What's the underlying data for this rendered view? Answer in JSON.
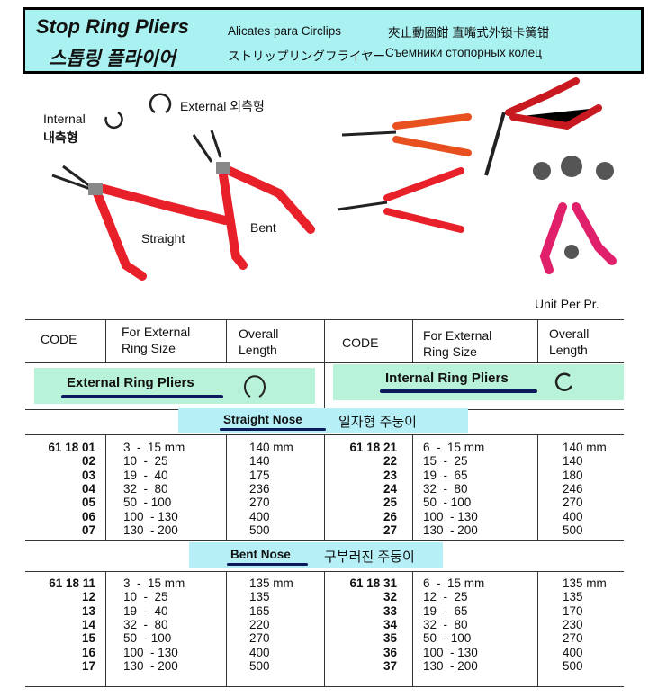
{
  "header": {
    "title_en": "Stop Ring Pliers",
    "title_ko": "스톱링 플라이어",
    "title_es": "Alicates para Circlips",
    "title_zh": "夾止動圈鉗  直嘴式外锁卡簧钳",
    "title_ja": "ストリップリングフライヤー",
    "title_ru": "Съемники стопорных колец"
  },
  "images": {
    "internal_en": "Internal",
    "internal_ko": "내측형",
    "external": "External 외측형",
    "straight": "Straight",
    "bent": "Bent",
    "unit": "Unit Per Pr."
  },
  "table": {
    "headers": [
      "CODE",
      "For External\nRing Size",
      "Overall\nLength"
    ],
    "external_title": "External Ring Pliers",
    "internal_title": "Internal Ring Pliers",
    "straight_title": "Straight Nose",
    "straight_ko": "일자형 주둥이",
    "bent_title": "Bent Nose",
    "bent_ko": "구부러진 주둥이",
    "straight_ext": [
      [
        "61 18 01",
        "3  -  15 mm",
        "140 mm"
      ],
      [
        "02",
        "10  -  25",
        "140"
      ],
      [
        "03",
        "19  -  40",
        "175"
      ],
      [
        "04",
        "32  -  80",
        "236"
      ],
      [
        "05",
        "50  - 100",
        "270"
      ],
      [
        "06",
        "100  - 130",
        "400"
      ],
      [
        "07",
        "130  - 200",
        "500"
      ]
    ],
    "straight_int": [
      [
        "61 18 21",
        "6  -  15 mm",
        "140 mm"
      ],
      [
        "22",
        "15  -  25",
        "140"
      ],
      [
        "23",
        "19  -  65",
        "180"
      ],
      [
        "24",
        "32  -  80",
        "246"
      ],
      [
        "25",
        "50  - 100",
        "270"
      ],
      [
        "26",
        "100  - 130",
        "400"
      ],
      [
        "27",
        "130  - 200",
        "500"
      ]
    ],
    "bent_ext": [
      [
        "61 18 11",
        "3  -  15 mm",
        "135 mm"
      ],
      [
        "12",
        "10  -  25",
        "135"
      ],
      [
        "13",
        "19  -  40",
        "165"
      ],
      [
        "14",
        "32  -  80",
        "220"
      ],
      [
        "15",
        "50  - 100",
        "270"
      ],
      [
        "16",
        "100  - 130",
        "400"
      ],
      [
        "17",
        "130  - 200",
        "500"
      ]
    ],
    "bent_int": [
      [
        "61 18 31",
        "6  -  15 mm",
        "135 mm"
      ],
      [
        "32",
        "12  -  25",
        "135"
      ],
      [
        "33",
        "19  -  65",
        "170"
      ],
      [
        "34",
        "32  -  80",
        "230"
      ],
      [
        "35",
        "50  - 100",
        "270"
      ],
      [
        "36",
        "100  - 130",
        "400"
      ],
      [
        "37",
        "130  - 200",
        "500"
      ]
    ]
  },
  "colors": {
    "header_bg": "#aaf2f2",
    "band_green": "#b8f2d8",
    "band_cyan": "#b6f0f6",
    "handle_red": "#e8202a",
    "handle_pink": "#e0206a"
  }
}
